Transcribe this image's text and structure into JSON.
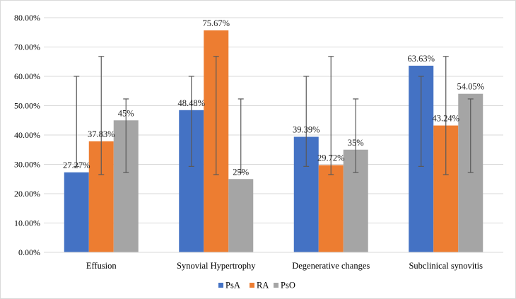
{
  "chart_data": {
    "type": "bar",
    "categories": [
      "Effusion",
      "Synovial Hypertrophy",
      "Degenerative changes",
      "Subclinical synovitis"
    ],
    "series": [
      {
        "name": "PsA",
        "color": "#4472c4",
        "values": [
          27.27,
          48.48,
          39.39,
          63.63
        ],
        "labels": [
          "27.27%",
          "48.48%",
          "39.39%",
          "63.63%"
        ],
        "error_low": [
          29.3,
          29.3,
          29.3,
          29.3
        ],
        "error_high": [
          60,
          60,
          60,
          60
        ]
      },
      {
        "name": "RA",
        "color": "#ed7d31",
        "values": [
          37.83,
          75.67,
          29.72,
          43.24
        ],
        "labels": [
          "37.83%",
          "75.67%",
          "29.72%",
          "43.24%"
        ],
        "error_low": [
          26.5,
          26.5,
          26.5,
          26.5
        ],
        "error_high": [
          66.8,
          66.8,
          66.8,
          66.8
        ]
      },
      {
        "name": "PsO",
        "color": "#a5a5a5",
        "values": [
          45,
          25,
          35,
          54.05
        ],
        "labels": [
          "45%",
          "25%",
          "35%",
          "54.05%"
        ],
        "error_low": [
          27.2,
          27.2,
          27.2,
          27.2
        ],
        "error_high": [
          52.3,
          52.3,
          52.3,
          52.3
        ]
      }
    ],
    "yticks": [
      "0.00%",
      "10.00%",
      "20.00%",
      "30.00%",
      "40.00%",
      "50.00%",
      "60.00%",
      "70.00%",
      "80.00%"
    ],
    "ylim": [
      0,
      80
    ],
    "grid": true,
    "legend": "bottom",
    "title": "",
    "xlabel": "",
    "ylabel": ""
  }
}
